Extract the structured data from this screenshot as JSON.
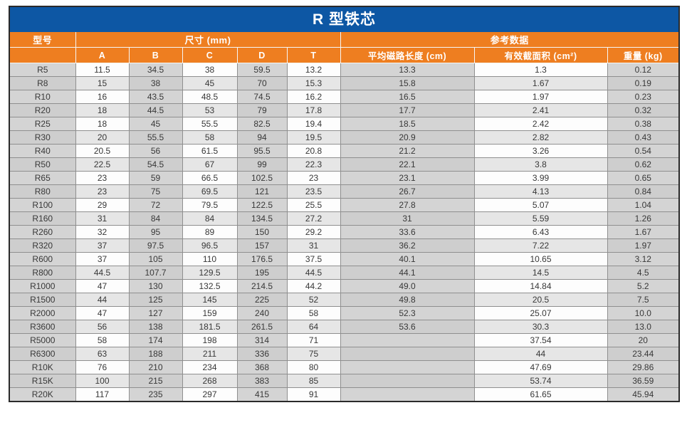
{
  "title": "R 型铁芯",
  "table": {
    "header": {
      "model_label": "型号",
      "dims_group_label": "尺寸 (mm)",
      "ref_group_label": "参考数据",
      "dim_columns": [
        "A",
        "B",
        "C",
        "D",
        "T"
      ],
      "ref_columns": [
        "平均磁路长度 (cm)",
        "有效截面积 (cm²)",
        "重量 (kg)"
      ]
    },
    "rows": [
      [
        "R5",
        "11.5",
        "34.5",
        "38",
        "59.5",
        "13.2",
        "13.3",
        "1.3",
        "0.12"
      ],
      [
        "R8",
        "15",
        "38",
        "45",
        "70",
        "15.3",
        "15.8",
        "1.67",
        "0.19"
      ],
      [
        "R10",
        "16",
        "43.5",
        "48.5",
        "74.5",
        "16.2",
        "16.5",
        "1.97",
        "0.23"
      ],
      [
        "R20",
        "18",
        "44.5",
        "53",
        "79",
        "17.8",
        "17.7",
        "2.41",
        "0.32"
      ],
      [
        "R25",
        "18",
        "45",
        "55.5",
        "82.5",
        "19.4",
        "18.5",
        "2.42",
        "0.38"
      ],
      [
        "R30",
        "20",
        "55.5",
        "58",
        "94",
        "19.5",
        "20.9",
        "2.82",
        "0.43"
      ],
      [
        "R40",
        "20.5",
        "56",
        "61.5",
        "95.5",
        "20.8",
        "21.2",
        "3.26",
        "0.54"
      ],
      [
        "R50",
        "22.5",
        "54.5",
        "67",
        "99",
        "22.3",
        "22.1",
        "3.8",
        "0.62"
      ],
      [
        "R65",
        "23",
        "59",
        "66.5",
        "102.5",
        "23",
        "23.1",
        "3.99",
        "0.65"
      ],
      [
        "R80",
        "23",
        "75",
        "69.5",
        "121",
        "23.5",
        "26.7",
        "4.13",
        "0.84"
      ],
      [
        "R100",
        "29",
        "72",
        "79.5",
        "122.5",
        "25.5",
        "27.8",
        "5.07",
        "1.04"
      ],
      [
        "R160",
        "31",
        "84",
        "84",
        "134.5",
        "27.2",
        "31",
        "5.59",
        "1.26"
      ],
      [
        "R260",
        "32",
        "95",
        "89",
        "150",
        "29.2",
        "33.6",
        "6.43",
        "1.67"
      ],
      [
        "R320",
        "37",
        "97.5",
        "96.5",
        "157",
        "31",
        "36.2",
        "7.22",
        "1.97"
      ],
      [
        "R600",
        "37",
        "105",
        "110",
        "176.5",
        "37.5",
        "40.1",
        "10.65",
        "3.12"
      ],
      [
        "R800",
        "44.5",
        "107.7",
        "129.5",
        "195",
        "44.5",
        "44.1",
        "14.5",
        "4.5"
      ],
      [
        "R1000",
        "47",
        "130",
        "132.5",
        "214.5",
        "44.2",
        "49.0",
        "14.84",
        "5.2"
      ],
      [
        "R1500",
        "44",
        "125",
        "145",
        "225",
        "52",
        "49.8",
        "20.5",
        "7.5"
      ],
      [
        "R2000",
        "47",
        "127",
        "159",
        "240",
        "58",
        "52.3",
        "25.07",
        "10.0"
      ],
      [
        "R3600",
        "56",
        "138",
        "181.5",
        "261.5",
        "64",
        "53.6",
        "30.3",
        "13.0"
      ],
      [
        "R5000",
        "58",
        "174",
        "198",
        "314",
        "71",
        "",
        "37.54",
        "20"
      ],
      [
        "R6300",
        "63",
        "188",
        "211",
        "336",
        "75",
        "",
        "44",
        "23.44"
      ],
      [
        "R10K",
        "76",
        "210",
        "234",
        "368",
        "80",
        "",
        "47.69",
        "29.86"
      ],
      [
        "R15K",
        "100",
        "215",
        "268",
        "383",
        "85",
        "",
        "53.74",
        "36.59"
      ],
      [
        "R20K",
        "117",
        "235",
        "297",
        "415",
        "91",
        "",
        "61.65",
        "45.94"
      ]
    ],
    "column_shading": [
      "gray",
      "white",
      "gray",
      "white",
      "gray",
      "white",
      "gray",
      "white",
      "gray"
    ]
  },
  "colors": {
    "title_bg": "#0d57a4",
    "header_bg": "#ee7e20",
    "cell_gray": "#d4d4d4",
    "cell_white": "#fdfdfd",
    "border_dark": "#2a2a2a",
    "grid_line": "#8f8f8f"
  }
}
